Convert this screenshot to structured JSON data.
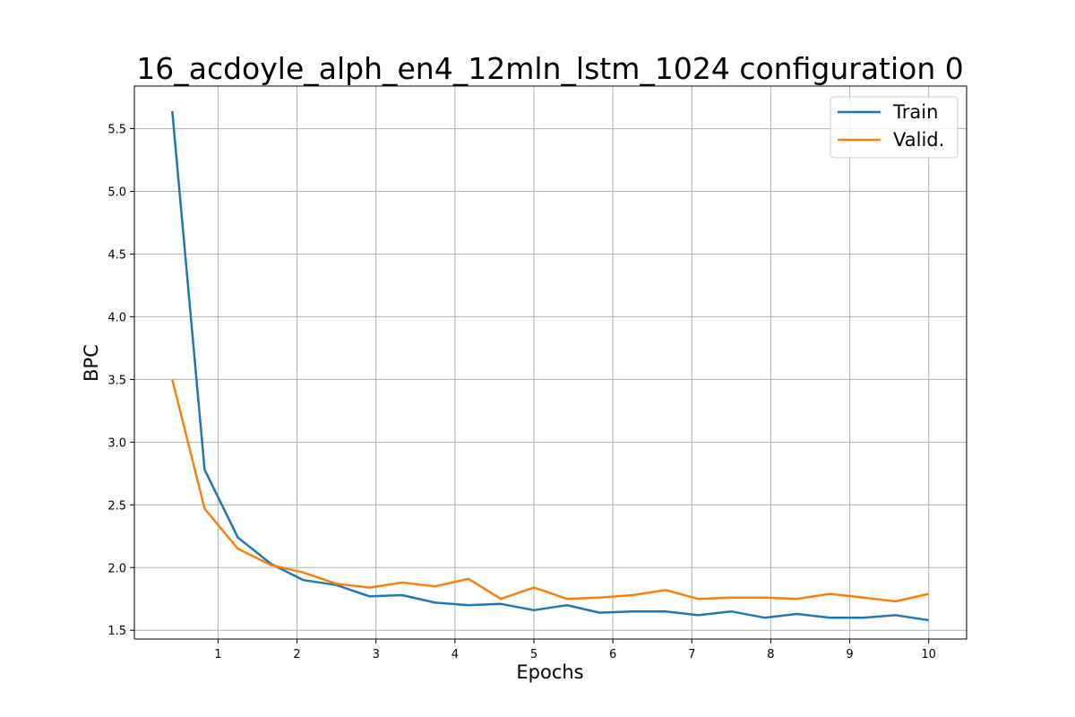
{
  "chart_data": {
    "type": "line",
    "title": "16_acdoyle_alph_en4_12mln_lstm_1024 configuration 0",
    "xlabel": "Epochs",
    "ylabel": "BPC",
    "xlim": [
      -0.06,
      10.48
    ],
    "ylim": [
      1.43,
      5.84
    ],
    "xticks": [
      1,
      2,
      3,
      4,
      5,
      6,
      7,
      8,
      9,
      10
    ],
    "yticks": [
      1.5,
      2.0,
      2.5,
      3.0,
      3.5,
      4.0,
      4.5,
      5.0,
      5.5
    ],
    "ytick_labels": [
      "1.5",
      "2.0",
      "2.5",
      "3.0",
      "3.5",
      "4.0",
      "4.5",
      "5.0",
      "5.5"
    ],
    "xtick_labels": [
      "1",
      "2",
      "3",
      "4",
      "5",
      "6",
      "7",
      "8",
      "9",
      "10"
    ],
    "grid": true,
    "legend_position": "top-right",
    "x": [
      0.42,
      0.83,
      1.25,
      1.67,
      2.08,
      2.5,
      2.92,
      3.33,
      3.75,
      4.17,
      4.58,
      5.0,
      5.42,
      5.83,
      6.25,
      6.67,
      7.08,
      7.5,
      7.92,
      8.33,
      8.75,
      9.17,
      9.58,
      10.0
    ],
    "series": [
      {
        "name": "Train",
        "color": "#1f77b4",
        "values": [
          5.64,
          2.78,
          2.24,
          2.03,
          1.9,
          1.86,
          1.77,
          1.78,
          1.72,
          1.7,
          1.71,
          1.66,
          1.7,
          1.64,
          1.65,
          1.65,
          1.62,
          1.65,
          1.6,
          1.63,
          1.6,
          1.6,
          1.62,
          1.58
        ]
      },
      {
        "name": "Valid.",
        "color": "#ff7f0e",
        "values": [
          3.5,
          2.47,
          2.15,
          2.02,
          1.96,
          1.87,
          1.84,
          1.88,
          1.85,
          1.91,
          1.75,
          1.84,
          1.75,
          1.76,
          1.78,
          1.82,
          1.75,
          1.76,
          1.76,
          1.75,
          1.79,
          1.76,
          1.73,
          1.79
        ]
      }
    ]
  }
}
